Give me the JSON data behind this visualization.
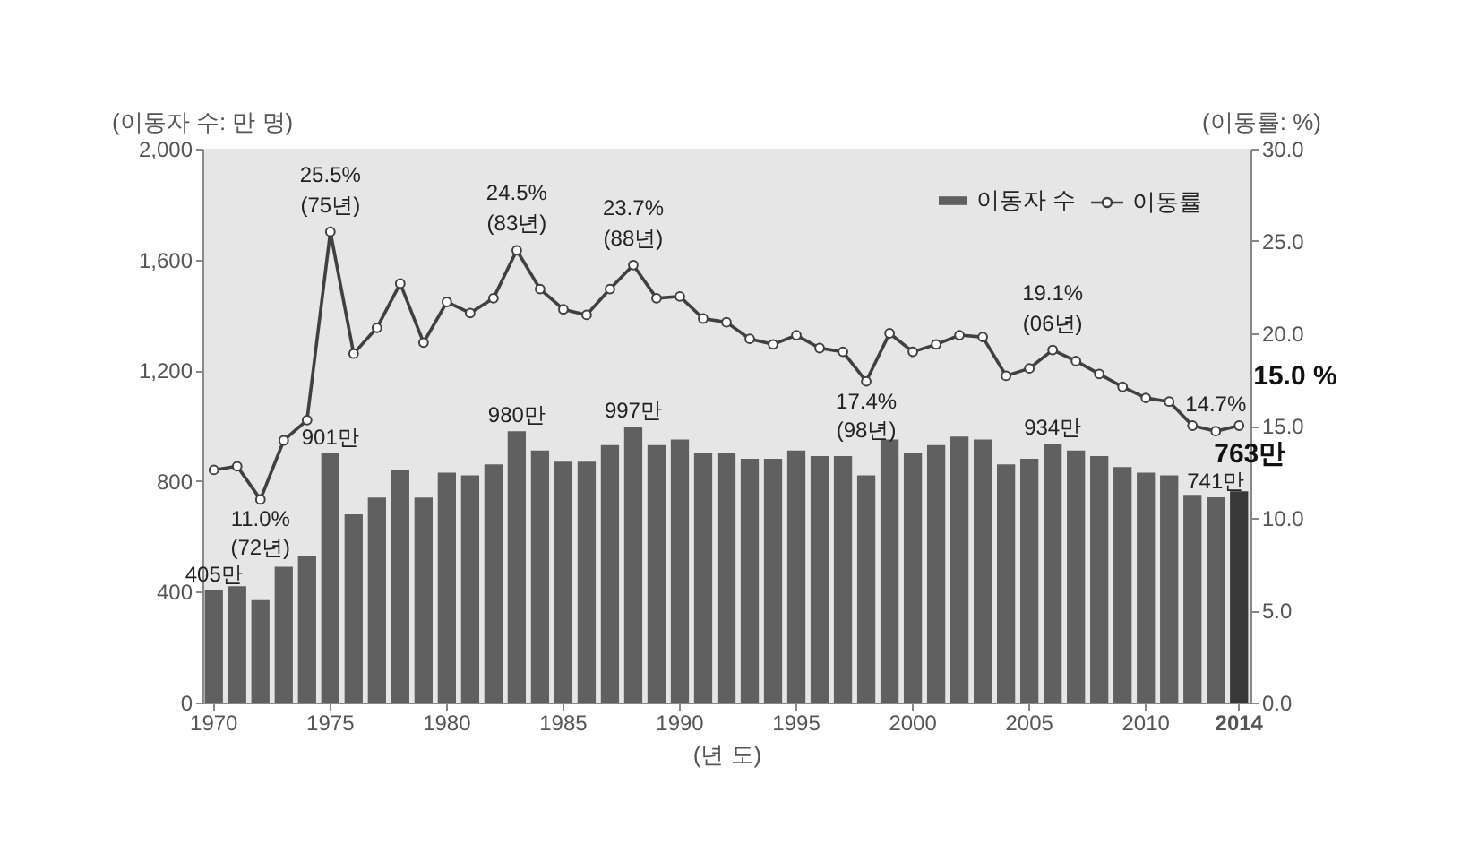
{
  "chart_data": {
    "type": "bar",
    "categories": [
      "1970",
      null,
      null,
      null,
      null,
      "1975",
      null,
      null,
      null,
      null,
      "1980",
      null,
      null,
      null,
      null,
      "1985",
      null,
      null,
      null,
      null,
      "1990",
      null,
      null,
      null,
      null,
      "1995",
      null,
      null,
      null,
      null,
      "2000",
      null,
      null,
      null,
      null,
      "2005",
      null,
      null,
      null,
      null,
      "2010",
      null,
      null,
      null,
      "2014"
    ],
    "series": [
      {
        "name": "이동자 수",
        "color": "#606060",
        "colors": [
          "#606060",
          "#606060",
          "#606060",
          "#606060",
          "#606060",
          "#606060",
          "#606060",
          "#606060",
          "#606060",
          "#606060",
          "#606060",
          "#606060",
          "#606060",
          "#606060",
          "#606060",
          "#606060",
          "#606060",
          "#606060",
          "#606060",
          "#606060",
          "#606060",
          "#606060",
          "#606060",
          "#606060",
          "#606060",
          "#606060",
          "#606060",
          "#606060",
          "#606060",
          "#606060",
          "#606060",
          "#606060",
          "#606060",
          "#606060",
          "#606060",
          "#606060",
          "#606060",
          "#606060",
          "#606060",
          "#606060",
          "#606060",
          "#606060",
          "#606060",
          "#606060",
          "#383838"
        ],
        "values": [
          405,
          420,
          370,
          490,
          530,
          901,
          680,
          740,
          840,
          740,
          830,
          820,
          860,
          980,
          910,
          870,
          870,
          930,
          997,
          930,
          950,
          900,
          900,
          880,
          880,
          910,
          890,
          890,
          820,
          950,
          900,
          930,
          960,
          950,
          860,
          880,
          934,
          910,
          890,
          850,
          830,
          820,
          750,
          741,
          763
        ],
        "value_labels": [
          "405만",
          null,
          null,
          null,
          null,
          "901만",
          null,
          null,
          null,
          null,
          null,
          null,
          null,
          "980만",
          null,
          null,
          null,
          null,
          "997만",
          null,
          null,
          null,
          null,
          null,
          null,
          null,
          null,
          null,
          null,
          null,
          null,
          null,
          null,
          null,
          null,
          null,
          "934만",
          null,
          null,
          null,
          null,
          null,
          null,
          "741만",
          "763만"
        ]
      },
      {
        "name": "이동률",
        "type": "line",
        "axis": "y2",
        "color": "#404040",
        "values": [
          12.6,
          12.8,
          11.0,
          14.2,
          15.3,
          25.5,
          18.9,
          20.3,
          22.7,
          19.5,
          21.7,
          21.1,
          21.9,
          24.5,
          22.4,
          21.3,
          21.0,
          22.4,
          23.7,
          21.9,
          22.0,
          20.8,
          20.6,
          19.7,
          19.4,
          19.9,
          19.2,
          19.0,
          17.4,
          20.0,
          19.0,
          19.4,
          19.9,
          19.8,
          17.7,
          18.1,
          19.1,
          18.5,
          17.8,
          17.1,
          16.5,
          16.3,
          15.0,
          14.7,
          15.0
        ],
        "value_labels": [
          null,
          null,
          "11.0%\n(72년)",
          null,
          null,
          "25.5%\n(75년)",
          null,
          null,
          null,
          null,
          null,
          null,
          null,
          "24.5%\n(83년)",
          null,
          null,
          null,
          null,
          "23.7%\n(88년)",
          null,
          null,
          null,
          null,
          null,
          null,
          null,
          null,
          null,
          "17.4%\n(98년)",
          null,
          null,
          null,
          null,
          null,
          null,
          null,
          "19.1%\n(06년)",
          null,
          null,
          null,
          null,
          null,
          null,
          "14.7%",
          "15.0 %"
        ]
      }
    ],
    "xlabel": "(년 도)",
    "ylabel": "(이동자 수: 만 명)",
    "y2label": "(이동률: %)",
    "ylim": [
      0,
      2000
    ],
    "yticks": [
      0,
      400,
      800,
      {
        "value": 1200,
        "label": "1,200"
      },
      {
        "value": 1600,
        "label": "1,600"
      },
      {
        "value": 2000,
        "label": "2,000"
      }
    ],
    "y2lim": [
      0,
      30
    ],
    "y2ticks": [
      {
        "value": 0,
        "label": "0.0"
      },
      {
        "value": 5,
        "label": "5.0"
      },
      {
        "value": 10,
        "label": "10.0"
      },
      {
        "value": 15,
        "label": "15.0"
      },
      {
        "value": 20,
        "label": "20.0"
      },
      {
        "value": 25,
        "label": "25.0"
      },
      {
        "value": 30,
        "label": "30.0"
      }
    ],
    "legend": "top right",
    "marker": "circle",
    "line_style": "solid"
  }
}
